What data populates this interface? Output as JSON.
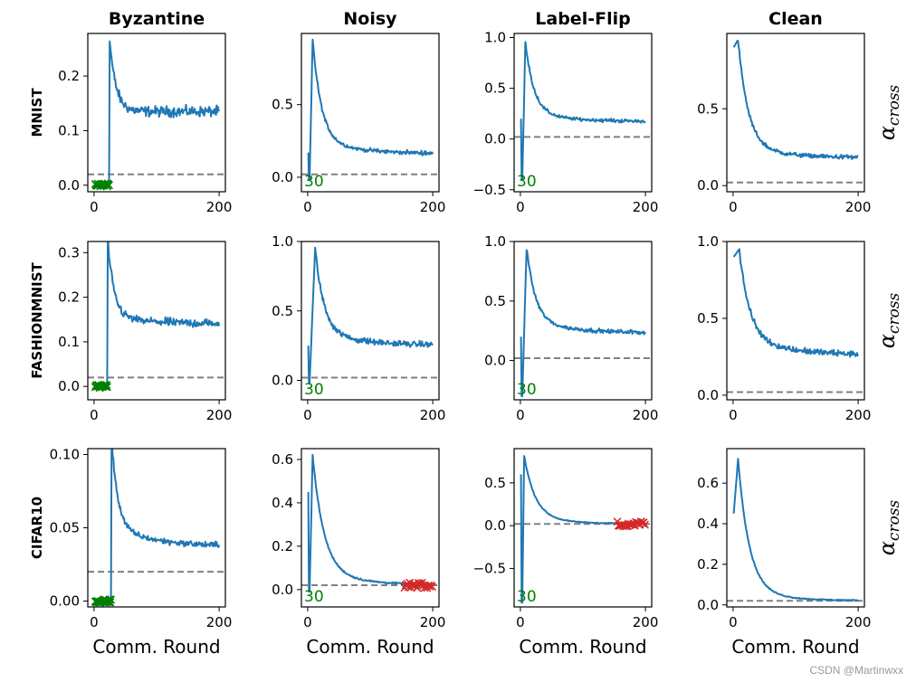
{
  "chart_data": {
    "type": "line",
    "columns": [
      "Byzantine",
      "Noisy",
      "Label-Flip",
      "Clean"
    ],
    "rows": [
      "MNIST",
      "FASHIONMNIST",
      "CIFAR10"
    ],
    "xlabel": "Comm. Round",
    "ylabel": "α_cross",
    "ylabel_base": "α",
    "ylabel_sub": "cross",
    "series_color": "#1f77b4",
    "threshold_color": "#808080",
    "annotation_color": "#008000",
    "marker_bad_color": "#d62728",
    "x_range": [
      0,
      200
    ],
    "panels": [
      {
        "row": "MNIST",
        "col": "Byzantine",
        "ylim": [
          -0.012,
          0.278
        ],
        "yticks": [
          "0.0",
          "0.1",
          "0.2"
        ],
        "ytick_values": [
          0,
          0.1,
          0.2
        ],
        "xticks": [
          "0",
          "200"
        ],
        "kind": "byzantine",
        "start": 0.0,
        "peak": 0.265,
        "peak_x": 25,
        "plateau": 0.135,
        "end": 0.135,
        "noise": 0.014,
        "threshold": 0.02,
        "annotation": ""
      },
      {
        "row": "MNIST",
        "col": "Noisy",
        "ylim": [
          -0.1,
          0.99
        ],
        "yticks": [
          "0.0",
          "0.5"
        ],
        "ytick_values": [
          0,
          0.5
        ],
        "xticks": [
          "0",
          "200"
        ],
        "kind": "noisy",
        "start": 0.17,
        "dip": -0.02,
        "peak": 0.95,
        "peak_x": 8,
        "plateau": 0.25,
        "end": 0.16,
        "noise": 0.02,
        "threshold": 0.02,
        "annotation": "30"
      },
      {
        "row": "MNIST",
        "col": "Label-Flip",
        "ylim": [
          -0.52,
          1.04
        ],
        "yticks": [
          "−0.5",
          "0.0",
          "0.5",
          "1.0"
        ],
        "ytick_values": [
          -0.5,
          0,
          0.5,
          1.0
        ],
        "xticks": [
          "0",
          "200"
        ],
        "kind": "noisy",
        "start": 0.2,
        "dip": -0.4,
        "peak": 0.95,
        "peak_x": 8,
        "plateau": 0.25,
        "end": 0.17,
        "noise": 0.025,
        "threshold": 0.02,
        "annotation": "30"
      },
      {
        "row": "MNIST",
        "col": "Clean",
        "ylim": [
          -0.04,
          0.99
        ],
        "yticks": [
          "0.0",
          "0.5"
        ],
        "ytick_values": [
          0,
          0.5
        ],
        "xticks": [
          "0",
          "200"
        ],
        "kind": "clean",
        "start": 0.9,
        "peak": 0.95,
        "peak_x": 8,
        "plateau": 0.25,
        "end": 0.18,
        "noise": 0.02,
        "threshold": 0.02,
        "annotation": ""
      },
      {
        "row": "FASHIONMNIST",
        "col": "Byzantine",
        "ylim": [
          -0.03,
          0.325
        ],
        "yticks": [
          "0.0",
          "0.1",
          "0.2",
          "0.3"
        ],
        "ytick_values": [
          0,
          0.1,
          0.2,
          0.3
        ],
        "xticks": [
          "0",
          "200"
        ],
        "kind": "byzantine",
        "start": 0.0,
        "peak": 0.31,
        "peak_x": 22,
        "plateau": 0.155,
        "end": 0.14,
        "noise": 0.014,
        "threshold": 0.02,
        "annotation": ""
      },
      {
        "row": "FASHIONMNIST",
        "col": "Noisy",
        "ylim": [
          -0.14,
          1.0
        ],
        "yticks": [
          "0.0",
          "0.5",
          "1.0"
        ],
        "ytick_values": [
          0,
          0.5,
          1.0
        ],
        "xticks": [
          "0",
          "200"
        ],
        "kind": "noisy",
        "start": 0.25,
        "dip": -0.02,
        "peak": 0.95,
        "peak_x": 12,
        "plateau": 0.35,
        "end": 0.25,
        "noise": 0.03,
        "threshold": 0.02,
        "annotation": "30"
      },
      {
        "row": "FASHIONMNIST",
        "col": "Label-Flip",
        "ylim": [
          -0.33,
          1.0
        ],
        "yticks": [
          "0.0",
          "0.5",
          "1.0"
        ],
        "ytick_values": [
          0,
          0.5,
          1.0
        ],
        "xticks": [
          "0",
          "200"
        ],
        "kind": "noisy",
        "start": 0.2,
        "dip": -0.3,
        "peak": 0.95,
        "peak_x": 10,
        "plateau": 0.33,
        "end": 0.23,
        "noise": 0.025,
        "threshold": 0.02,
        "annotation": "30"
      },
      {
        "row": "FASHIONMNIST",
        "col": "Clean",
        "ylim": [
          -0.03,
          1.0
        ],
        "yticks": [
          "0.0",
          "0.5",
          "1.0"
        ],
        "ytick_values": [
          0,
          0.5,
          1.0
        ],
        "xticks": [
          "0",
          "200"
        ],
        "kind": "clean",
        "start": 0.9,
        "peak": 0.95,
        "peak_x": 10,
        "plateau": 0.38,
        "end": 0.26,
        "noise": 0.03,
        "threshold": 0.02,
        "annotation": ""
      },
      {
        "row": "CIFAR10",
        "col": "Byzantine",
        "ylim": [
          -0.004,
          0.104
        ],
        "yticks": [
          "0.00",
          "0.05",
          "0.10"
        ],
        "ytick_values": [
          0,
          0.05,
          0.1
        ],
        "xticks": [
          "0",
          "200"
        ],
        "kind": "byzantine",
        "start": 0.0,
        "peak": 0.099,
        "peak_x": 28,
        "plateau": 0.05,
        "end": 0.037,
        "noise": 0.003,
        "threshold": 0.02,
        "annotation": ""
      },
      {
        "row": "CIFAR10",
        "col": "Noisy",
        "ylim": [
          -0.08,
          0.65
        ],
        "yticks": [
          "0.0",
          "0.2",
          "0.4",
          "0.6"
        ],
        "ytick_values": [
          0,
          0.2,
          0.4,
          0.6
        ],
        "xticks": [
          "0",
          "200"
        ],
        "kind": "noisy_smooth",
        "start": 0.45,
        "dip": -0.01,
        "peak": 0.62,
        "peak_x": 8,
        "plateau": 0.08,
        "end": 0.02,
        "noise": 0.006,
        "threshold": 0.02,
        "annotation": "30",
        "bad_from": 155
      },
      {
        "row": "CIFAR10",
        "col": "Label-Flip",
        "ylim": [
          -0.95,
          0.9
        ],
        "yticks": [
          "−0.5",
          "0.0",
          "0.5"
        ],
        "ytick_values": [
          -0.5,
          0,
          0.5
        ],
        "xticks": [
          "0",
          "200"
        ],
        "kind": "noisy_smooth",
        "start": 0.6,
        "dip": -0.9,
        "peak": 0.82,
        "peak_x": 6,
        "plateau": 0.08,
        "end": 0.02,
        "noise": 0.01,
        "threshold": 0.02,
        "annotation": "30",
        "bad_from": 155
      },
      {
        "row": "CIFAR10",
        "col": "Clean",
        "ylim": [
          -0.01,
          0.77
        ],
        "yticks": [
          "0.0",
          "0.2",
          "0.4",
          "0.6"
        ],
        "ytick_values": [
          0,
          0.2,
          0.4,
          0.6
        ],
        "xticks": [
          "0",
          "200"
        ],
        "kind": "clean_smooth",
        "start": 0.45,
        "peak": 0.72,
        "peak_x": 8,
        "plateau": 0.06,
        "end": 0.02,
        "noise": 0.004,
        "threshold": 0.02,
        "annotation": ""
      }
    ]
  },
  "watermark": "CSDN @Martinwxx"
}
